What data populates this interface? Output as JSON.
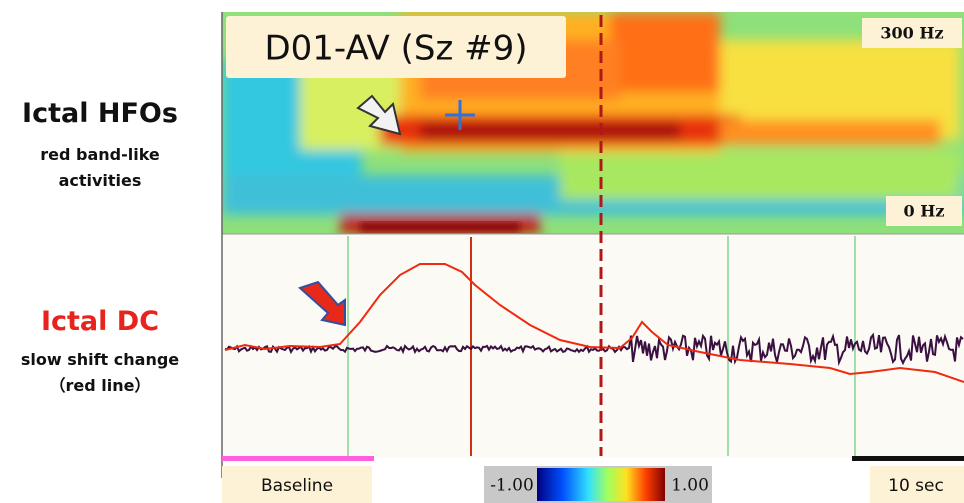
{
  "labels": {
    "hfo_title": "Ictal HFOs",
    "hfo_desc": [
      "red band-like",
      "activities"
    ],
    "dc_title": "Ictal DC",
    "dc_desc": [
      "slow shift change",
      "（red line）"
    ]
  },
  "spectrogram": {
    "title": "D01-AV (Sz #9)",
    "freq_top": "300 Hz",
    "freq_bottom": "0 Hz"
  },
  "footer": {
    "baseline": "Baseline",
    "colorbar_min": "-1.00",
    "colorbar_max": "1.00",
    "scale": "10 sec"
  }
}
